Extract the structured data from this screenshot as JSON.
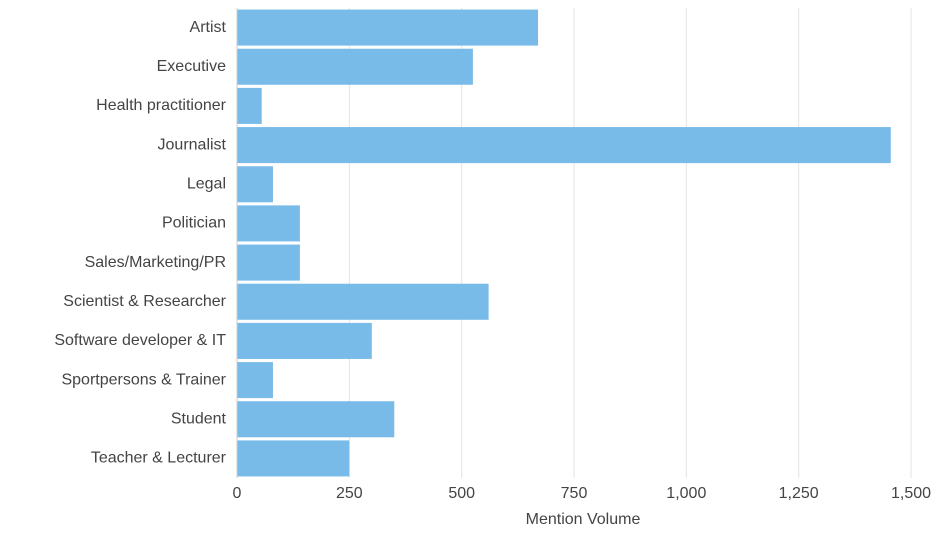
{
  "chart_data": {
    "type": "bar",
    "orientation": "horizontal",
    "categories": [
      "Artist",
      "Executive",
      "Health practitioner",
      "Journalist",
      "Legal",
      "Politician",
      "Sales/Marketing/PR",
      "Scientist & Researcher",
      "Software developer & IT",
      "Sportpersons & Trainer",
      "Student",
      "Teacher & Lecturer"
    ],
    "values": [
      670,
      525,
      55,
      1455,
      80,
      140,
      140,
      560,
      300,
      80,
      350,
      250
    ],
    "color": "#79bbe8",
    "xlabel": "Mention Volume",
    "xlim": [
      0,
      1500
    ],
    "xticks": [
      0,
      250,
      500,
      750,
      {
        "value": 1000,
        "label": "1,000"
      },
      {
        "value": 1250,
        "label": "1,250"
      },
      {
        "value": 1500,
        "label": "1,500"
      }
    ],
    "grid": true
  }
}
